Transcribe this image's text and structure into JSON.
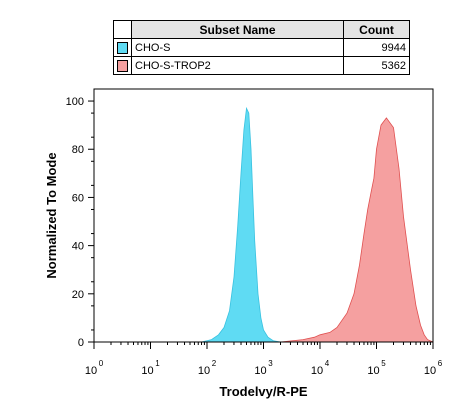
{
  "legend": {
    "headers": [
      "Subset Name",
      "Count"
    ],
    "rows": [
      {
        "name": "CHO-S",
        "count": "9944",
        "color": "#5fdbf3"
      },
      {
        "name": "CHO-S-TROP2",
        "count": "5362",
        "color": "#f5a0a0"
      }
    ]
  },
  "chart_data": {
    "type": "area",
    "xlabel": "Trodelvy/R-PE",
    "ylabel": "Normalized To Mode",
    "x_scale": "log",
    "xlim": [
      1,
      1000000
    ],
    "ylim": [
      0,
      105
    ],
    "x_tick_labels": [
      "10",
      "10",
      "10",
      "10",
      "10",
      "10",
      "10"
    ],
    "x_tick_exponents": [
      "0",
      "1",
      "2",
      "3",
      "4",
      "5",
      "6"
    ],
    "x_tick_values": [
      1,
      10,
      100,
      1000,
      10000,
      100000,
      1000000
    ],
    "y_tick_labels": [
      "0",
      "20",
      "40",
      "60",
      "80",
      "100"
    ],
    "y_tick_values": [
      0,
      20,
      40,
      60,
      80,
      100
    ],
    "grid": false,
    "series": [
      {
        "name": "CHO-S",
        "color": "#5fdbf3",
        "stroke": "#39c2e0",
        "x": [
          80,
          120,
          160,
          200,
          250,
          300,
          350,
          400,
          450,
          500,
          550,
          600,
          650,
          700,
          800,
          900,
          1000,
          1200,
          1500,
          2000
        ],
        "y": [
          0,
          1,
          3,
          6,
          13,
          27,
          48,
          70,
          88,
          97,
          95,
          80,
          60,
          42,
          20,
          10,
          5,
          2,
          0.5,
          0
        ]
      },
      {
        "name": "CHO-S-TROP2",
        "color": "#f5a0a0",
        "stroke": "#e05050",
        "x": [
          2000,
          5000,
          8000,
          10000,
          15000,
          20000,
          30000,
          40000,
          50000,
          60000,
          70000,
          80000,
          90000,
          100000,
          120000,
          150000,
          200000,
          250000,
          300000,
          400000,
          500000,
          600000,
          700000,
          800000,
          1000000
        ],
        "y": [
          0,
          1,
          2,
          3,
          4,
          6,
          12,
          20,
          32,
          45,
          55,
          62,
          68,
          80,
          90,
          93,
          89,
          72,
          52,
          30,
          15,
          7,
          3,
          1,
          0
        ]
      }
    ]
  }
}
